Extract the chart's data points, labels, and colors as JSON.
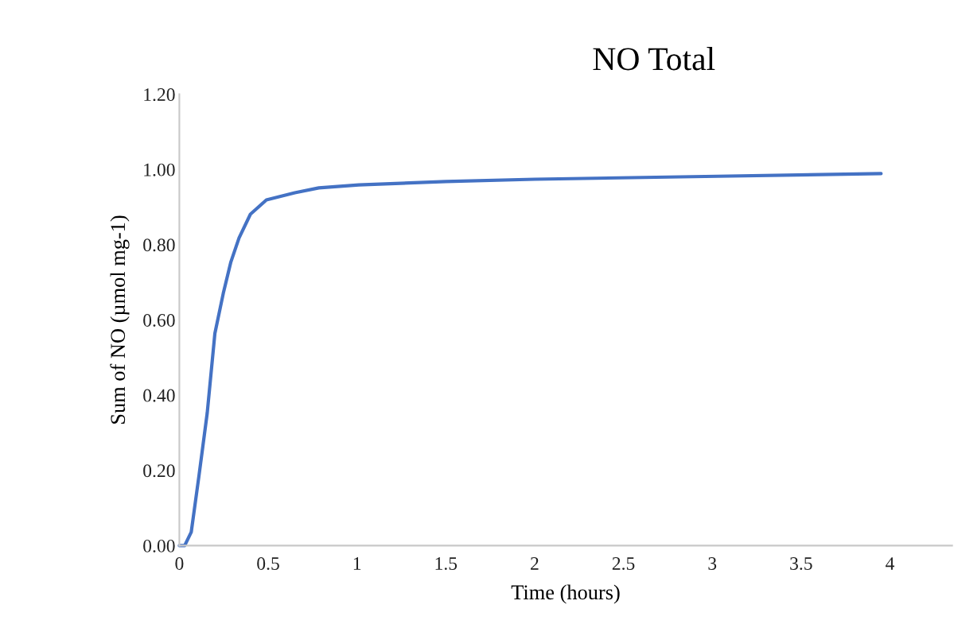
{
  "chart_data": {
    "type": "line",
    "title": "NO Total",
    "xlabel": "Time (hours)",
    "ylabel": "Sum of NO (µmol mg-1)",
    "x": [
      0,
      0.03,
      0.067,
      0.11,
      0.157,
      0.2,
      0.247,
      0.29,
      0.336,
      0.4,
      0.49,
      0.65,
      0.785,
      1.01,
      1.5,
      2.0,
      3.03,
      3.95
    ],
    "series": [
      {
        "color": "#4472c4",
        "values": [
          0,
          0,
          0.036,
          0.184,
          0.353,
          0.564,
          0.67,
          0.754,
          0.818,
          0.881,
          0.919,
          0.938,
          0.951,
          0.959,
          0.968,
          0.974,
          0.982,
          0.989
        ]
      }
    ],
    "xlim": [
      0,
      4.35
    ],
    "ylim": [
      0,
      1.2
    ],
    "xticks": [
      0,
      0.5,
      1,
      1.5,
      2,
      2.5,
      3,
      3.5,
      4
    ],
    "yticks": [
      {
        "value": 0,
        "label": "0.00"
      },
      {
        "value": 0.2,
        "label": "0.20"
      },
      {
        "value": 0.4,
        "label": "0.40"
      },
      {
        "value": 0.6,
        "label": "0.60"
      },
      {
        "value": 0.8,
        "label": "0.80"
      },
      {
        "value": 1.0,
        "label": "1.00"
      },
      {
        "value": 1.2,
        "label": "1.20"
      }
    ],
    "grid": false,
    "legend": false,
    "marker": "none",
    "line_style": "solid"
  }
}
